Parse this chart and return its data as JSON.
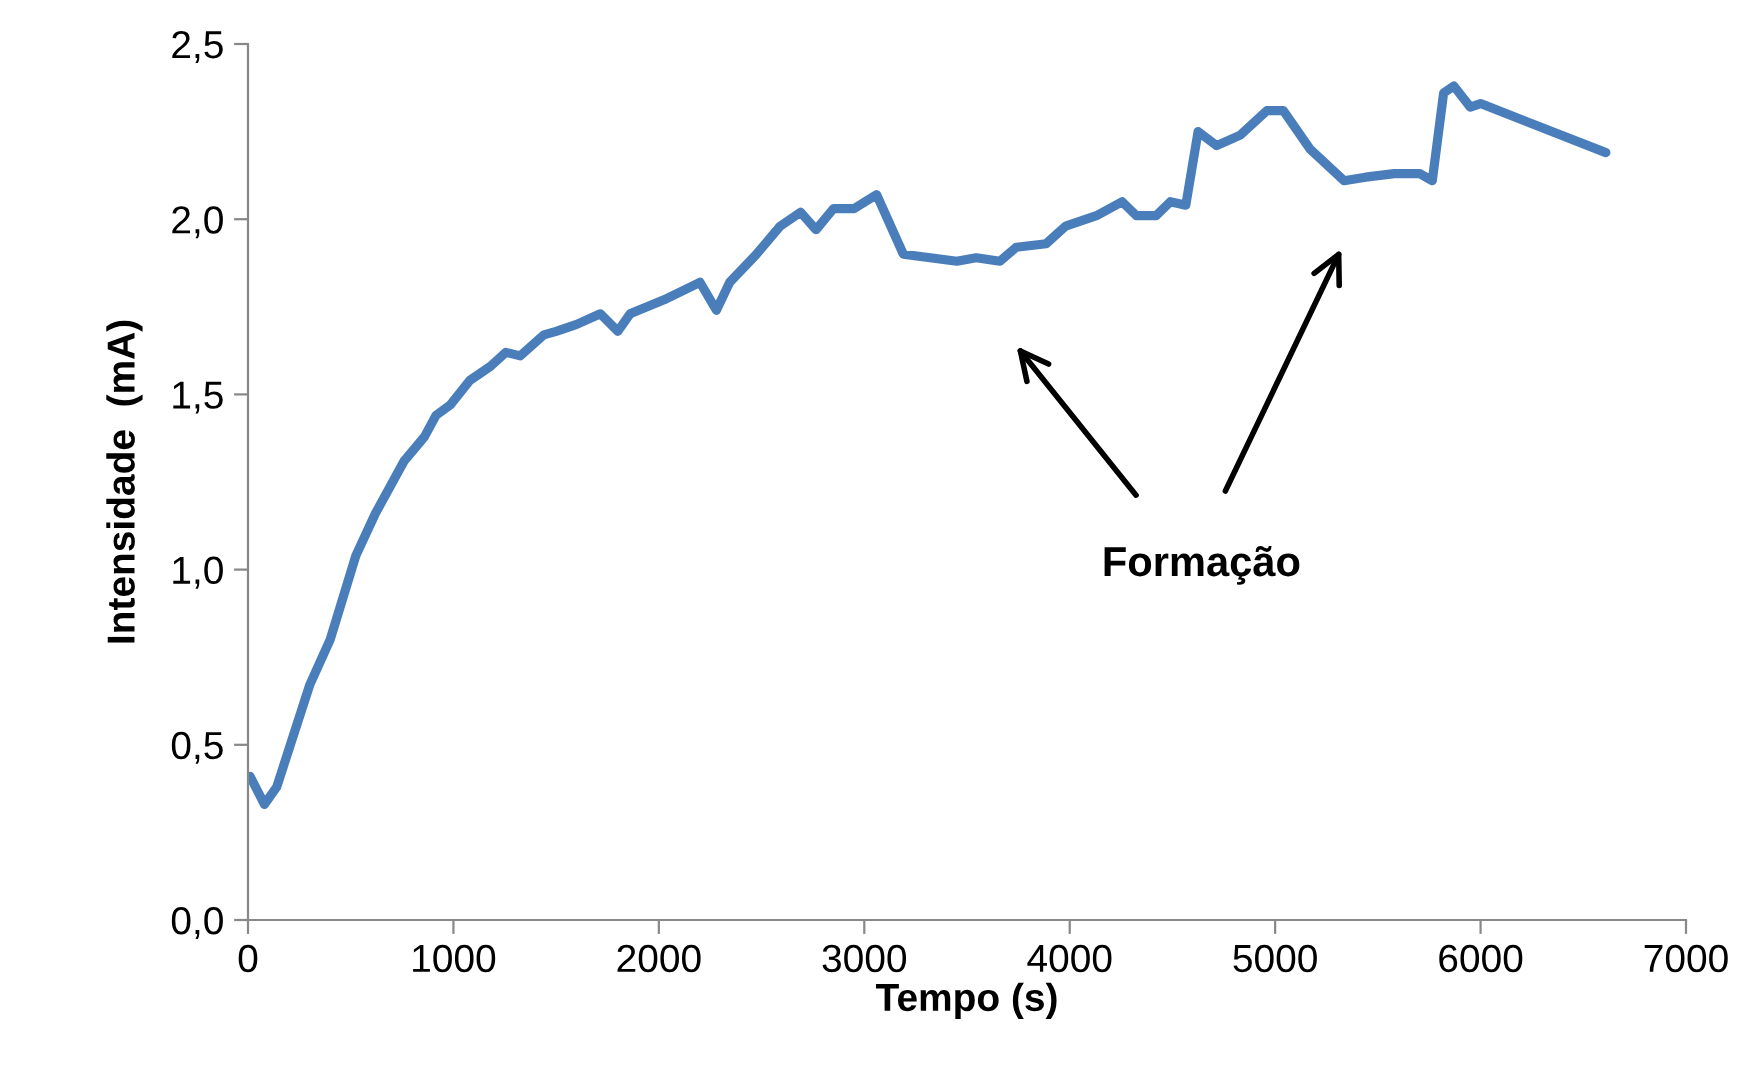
{
  "chart_data": {
    "type": "line",
    "xlabel": "Tempo (s)",
    "ylabel": "Intensidade  (mA)",
    "xlim": [
      0,
      7000
    ],
    "xticks": [
      0,
      1000,
      2000,
      3000,
      4000,
      5000,
      6000,
      7000
    ],
    "ylim": [
      0,
      2.5
    ],
    "yticks": [
      {
        "value": 0,
        "label": "0,0"
      },
      {
        "value": 0.5,
        "label": "0,5"
      },
      {
        "value": 1,
        "label": "1,0"
      },
      {
        "value": 1.5,
        "label": "1,5"
      },
      {
        "value": 2,
        "label": "2,0"
      },
      {
        "value": 2.5,
        "label": "2,5"
      }
    ],
    "grid": false,
    "marker": "none",
    "line_style": "solid",
    "annotations": [
      "Formação"
    ],
    "series": [
      {
        "color": "#4a7ebb",
        "x": [
          10,
          80,
          140,
          300,
          400,
          525,
          620,
          760,
          860,
          915,
          985,
          1080,
          1180,
          1255,
          1325,
          1440,
          1500,
          1600,
          1715,
          1800,
          1860,
          2025,
          2200,
          2280,
          2345,
          2475,
          2590,
          2690,
          2765,
          2850,
          2950,
          3060,
          3190,
          3450,
          3545,
          3660,
          3740,
          3885,
          3980,
          4130,
          4255,
          4325,
          4420,
          4490,
          4565,
          4625,
          4715,
          4830,
          4960,
          5040,
          5170,
          5335,
          5440,
          5580,
          5705,
          5765,
          5820,
          5870,
          5950,
          6000,
          6610
        ],
        "values": [
          0.41,
          0.33,
          0.38,
          0.67,
          0.8,
          1.04,
          1.16,
          1.31,
          1.38,
          1.44,
          1.47,
          1.54,
          1.58,
          1.62,
          1.61,
          1.67,
          1.68,
          1.7,
          1.73,
          1.68,
          1.73,
          1.77,
          1.82,
          1.74,
          1.82,
          1.9,
          1.98,
          2.02,
          1.97,
          2.03,
          2.03,
          2.07,
          1.9,
          1.88,
          1.89,
          1.88,
          1.92,
          1.93,
          1.98,
          2.01,
          2.05,
          2.01,
          2.01,
          2.05,
          2.04,
          2.25,
          2.21,
          2.24,
          2.31,
          2.31,
          2.2,
          2.11,
          2.12,
          2.13,
          2.13,
          2.11,
          2.36,
          2.38,
          2.32,
          2.33,
          2.19
        ]
      }
    ]
  }
}
